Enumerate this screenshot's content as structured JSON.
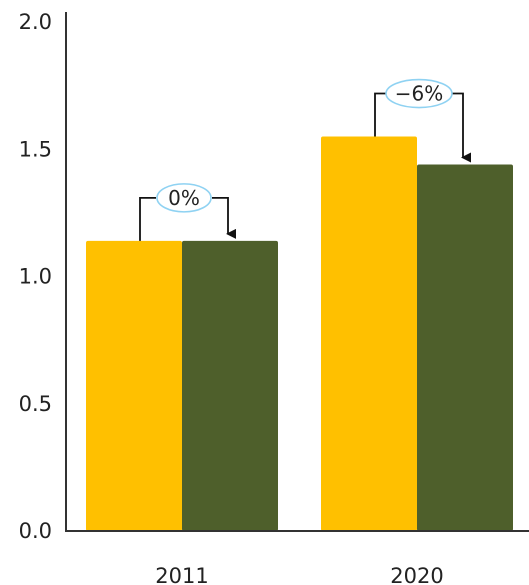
{
  "chart_data": {
    "type": "bar",
    "categories": [
      "2011",
      "2020"
    ],
    "series": [
      {
        "values": [
          1.14,
          1.55
        ],
        "color": "#FFC000"
      },
      {
        "values": [
          1.14,
          1.44
        ],
        "color": "#4E5F2B"
      }
    ],
    "ylim": [
      0,
      2.0
    ],
    "yticks": [
      "0.0",
      "0.5",
      "1.0",
      "1.5",
      "2.0"
    ],
    "grid": false,
    "annotations": [
      {
        "category": "2011",
        "text": "0%"
      },
      {
        "category": "2020",
        "text": "−6%"
      }
    ]
  }
}
